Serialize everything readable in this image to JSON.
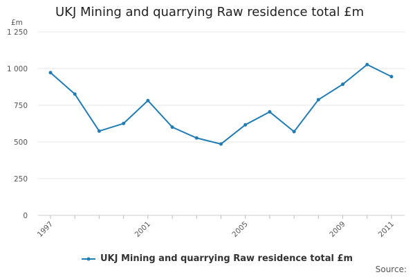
{
  "chart_data": {
    "type": "line",
    "title": "UKJ Mining and quarrying Raw residence total £m",
    "ylabel": "£m",
    "xlabel": "",
    "x": [
      1997,
      1998,
      1999,
      2000,
      2001,
      2002,
      2003,
      2004,
      2005,
      2006,
      2007,
      2008,
      2009,
      2010,
      2011
    ],
    "series": [
      {
        "name": "UKJ Mining and quarrying Raw residence total £m",
        "color": "#1f7cb4",
        "values": [
          972,
          826,
          574,
          626,
          782,
          601,
          527,
          486,
          617,
          705,
          570,
          788,
          893,
          1027,
          945
        ]
      }
    ],
    "xticks": [
      "1997",
      "2001",
      "2005",
      "2009",
      "2011"
    ],
    "yticks": [
      "0",
      "250",
      "500",
      "750",
      "1 000",
      "1 250"
    ],
    "ylim": [
      0,
      1250
    ],
    "grid": true,
    "legend_position": "bottom-center",
    "source": "Source:"
  }
}
